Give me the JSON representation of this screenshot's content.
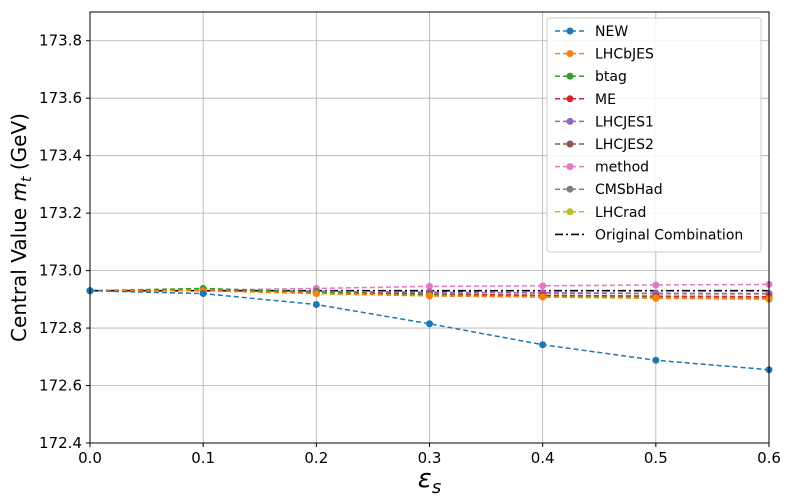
{
  "chart_data": {
    "type": "line",
    "title": "",
    "xlabel_symbol": "ε",
    "xlabel_sub": "s",
    "ylabel_text": "Central Value ",
    "ylabel_symbol": "m",
    "ylabel_sub": "t",
    "ylabel_unit": " (GeV)",
    "xlim": [
      0.0,
      0.6
    ],
    "ylim": [
      172.4,
      173.9
    ],
    "xticks": [
      0.0,
      0.1,
      0.2,
      0.3,
      0.4,
      0.5,
      0.6
    ],
    "xtick_labels": [
      "0.0",
      "0.1",
      "0.2",
      "0.3",
      "0.4",
      "0.5",
      "0.6"
    ],
    "yticks": [
      172.4,
      172.6,
      172.8,
      173.0,
      173.2,
      173.4,
      173.6,
      173.8
    ],
    "ytick_labels": [
      "172.4",
      "172.6",
      "172.8",
      "173.0",
      "173.2",
      "173.4",
      "173.6",
      "173.8"
    ],
    "grid": true,
    "legend_position": "top-right",
    "x": [
      0.0,
      0.1,
      0.2,
      0.3,
      0.4,
      0.5,
      0.6
    ],
    "series": [
      {
        "name": "NEW",
        "color": "#1f77b4",
        "values": [
          172.93,
          172.92,
          172.882,
          172.815,
          172.742,
          172.688,
          172.655
        ]
      },
      {
        "name": "LHCbJES",
        "color": "#ff7f0e",
        "values": [
          172.93,
          172.93,
          172.92,
          172.912,
          172.908,
          172.905,
          172.903
        ]
      },
      {
        "name": "btag",
        "color": "#2ca02c",
        "values": [
          172.93,
          172.938,
          172.925,
          172.915,
          172.91,
          172.906,
          172.904
        ]
      },
      {
        "name": "ME",
        "color": "#d62728",
        "values": [
          172.93,
          172.93,
          172.925,
          172.918,
          172.914,
          172.911,
          172.909
        ]
      },
      {
        "name": "LHCJES1",
        "color": "#9467bd",
        "values": [
          172.93,
          172.93,
          172.928,
          172.925,
          172.923,
          172.921,
          172.92
        ]
      },
      {
        "name": "LHCJES2",
        "color": "#8c564b",
        "values": [
          172.93,
          172.93,
          172.927,
          172.924,
          172.922,
          172.92,
          172.919
        ]
      },
      {
        "name": "method",
        "color": "#e377c2",
        "values": [
          172.93,
          172.932,
          172.938,
          172.945,
          172.947,
          172.95,
          172.952
        ]
      },
      {
        "name": "CMSbHad",
        "color": "#7f7f7f",
        "values": [
          172.93,
          172.93,
          172.924,
          172.918,
          172.914,
          172.911,
          172.909
        ]
      },
      {
        "name": "LHCrad",
        "color": "#bcbd22",
        "values": [
          172.93,
          172.935,
          172.92,
          172.912,
          172.908,
          172.903,
          172.9
        ]
      }
    ],
    "reference": {
      "name": "Original Combination",
      "color": "#000000",
      "value": 172.93
    }
  }
}
